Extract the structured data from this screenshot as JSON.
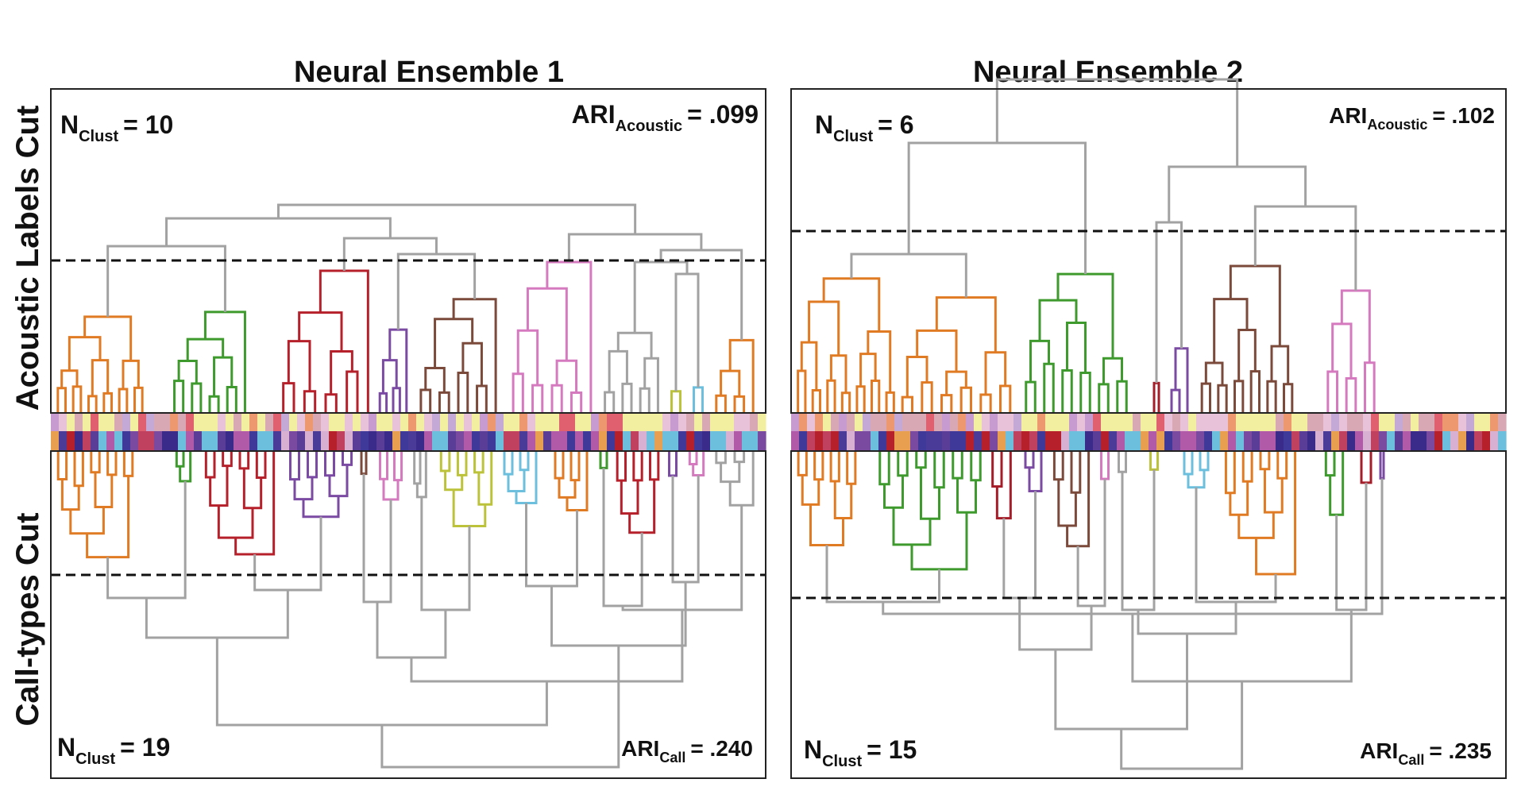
{
  "panels": [
    {
      "title": "Neural Ensemble 1",
      "top": {
        "stat_main": "N",
        "stat_sub": "Clust",
        "stat_value": "= 10",
        "ari_main": "ARI",
        "ari_sub": "Acoustic",
        "ari_value": "= .099"
      },
      "bottom": {
        "stat_main": "N",
        "stat_sub": "Clust",
        "stat_value": "= 19",
        "ari_main": "ARI",
        "ari_sub": "Call",
        "ari_value": "= .240"
      }
    },
    {
      "title": "Neural Ensemble 2",
      "top": {
        "stat_main": "N",
        "stat_sub": "Clust",
        "stat_value": "= 6",
        "ari_main": "ARI",
        "ari_sub": "Acoustic",
        "ari_value": "= .102"
      },
      "bottom": {
        "stat_main": "N",
        "stat_sub": "Clust",
        "stat_value": "= 15",
        "ari_main": "ARI",
        "ari_sub": "Call",
        "ari_value": "= .235"
      }
    }
  ],
  "row_labels": {
    "top": "Acoustic Labels Cut",
    "bottom": "Call-types Cut"
  },
  "colors": {
    "orange": "#e07b24",
    "green": "#3f9a2e",
    "red": "#b5202a",
    "purple": "#7b4ba3",
    "brown": "#7b4a3a",
    "pink": "#d67ac0",
    "gray": "#a2a2a2",
    "olive": "#bcc33a",
    "cyan": "#6cbfdd",
    "dark_red": "#a51d28",
    "rust": "#c86220"
  },
  "color_strips": {
    "top": [
      "#d8a8b4",
      "#f3efa0",
      "#e8c2d8",
      "#c4a8d6",
      "#f3efa0",
      "#d8a8b4",
      "#e06070",
      "#f3efa0",
      "#ee9870",
      "#c79ad0",
      "#f3efa0",
      "#e8c2d8"
    ],
    "bottom": [
      "#5a3d96",
      "#b05aa8",
      "#7a4aa0",
      "#3f3a9a",
      "#e8a050",
      "#6cbfdd",
      "#c04060",
      "#3a2a8a",
      "#6cbfdd",
      "#b5202a",
      "#d7b0d2",
      "#4a3b98"
    ]
  }
}
